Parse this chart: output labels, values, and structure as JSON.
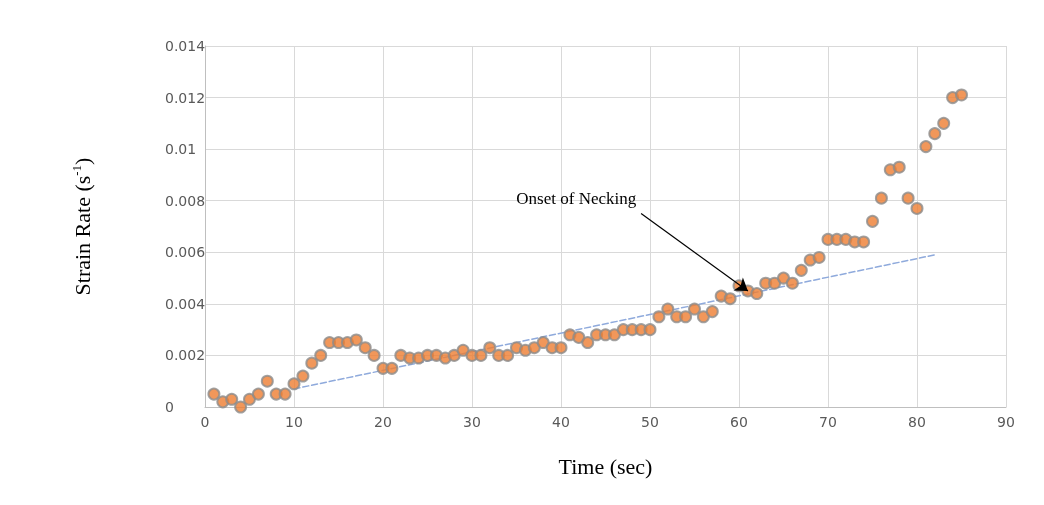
{
  "chart_data": {
    "type": "scatter",
    "xlabel": "Time (sec)",
    "ylabel": "Strain Rate (s$^{-1}$)",
    "x": [
      1,
      2,
      3,
      4,
      5,
      6,
      7,
      8,
      9,
      10,
      11,
      12,
      13,
      14,
      15,
      16,
      17,
      18,
      19,
      20,
      21,
      22,
      23,
      24,
      25,
      26,
      27,
      28,
      29,
      30,
      31,
      32,
      33,
      34,
      35,
      36,
      37,
      38,
      39,
      40,
      41,
      42,
      43,
      44,
      45,
      46,
      47,
      48,
      49,
      50,
      51,
      52,
      53,
      54,
      55,
      56,
      57,
      58,
      59,
      60,
      61,
      62,
      63,
      64,
      65,
      66,
      67,
      68,
      69,
      70,
      71,
      72,
      73,
      74,
      75,
      76,
      77,
      78,
      79,
      80,
      81,
      82,
      83,
      84,
      85
    ],
    "series": [
      {
        "color": "#ed7d31",
        "marker": "circle",
        "values": [
          0.0005,
          0.0002,
          0.0003,
          0,
          0.0003,
          0.0005,
          0.001,
          0.0005,
          0.0005,
          0.0009,
          0.0012,
          0.0017,
          0.002,
          0.0025,
          0.0025,
          0.0025,
          0.0026,
          0.0023,
          0.002,
          0.0015,
          0.0015,
          0.002,
          0.0019,
          0.0019,
          0.002,
          0.002,
          0.0019,
          0.002,
          0.0022,
          0.002,
          0.002,
          0.0023,
          0.002,
          0.002,
          0.0023,
          0.0022,
          0.0023,
          0.0025,
          0.0023,
          0.0023,
          0.0028,
          0.0027,
          0.0025,
          0.0028,
          0.0028,
          0.0028,
          0.003,
          0.003,
          0.003,
          0.003,
          0.0035,
          0.0038,
          0.0035,
          0.0035,
          0.0038,
          0.0035,
          0.0037,
          0.0043,
          0.0042,
          0.0047,
          0.0045,
          0.0044,
          0.0048,
          0.0048,
          0.005,
          0.0048,
          0.0053,
          0.0057,
          0.0058,
          0.0065,
          0.0065,
          0.0065,
          0.0064,
          0.0064,
          0.0072,
          0.0081,
          0.0092,
          0.0093,
          0.0081,
          0.0077,
          0.0101,
          0.0106,
          0.011,
          0.012,
          0.0121
        ]
      },
      {
        "type": "line",
        "color": "#8faadc",
        "line_style": "dashed",
        "marker": "none",
        "x": [
          10,
          82
        ],
        "values": [
          0.0007,
          0.0059
        ]
      }
    ],
    "annotations": [
      {
        "text": "Onset of Necking",
        "x": 61,
        "y": 0.0045
      }
    ],
    "xlim": [
      0,
      90
    ],
    "xticks": [
      0,
      10,
      20,
      30,
      40,
      50,
      60,
      70,
      80,
      90
    ],
    "ylim": [
      0,
      0.014
    ],
    "yticks": [
      0,
      0.002,
      0.004,
      0.006,
      0.008,
      0.01,
      0.012,
      0.014
    ],
    "grid": true,
    "legend": false
  }
}
